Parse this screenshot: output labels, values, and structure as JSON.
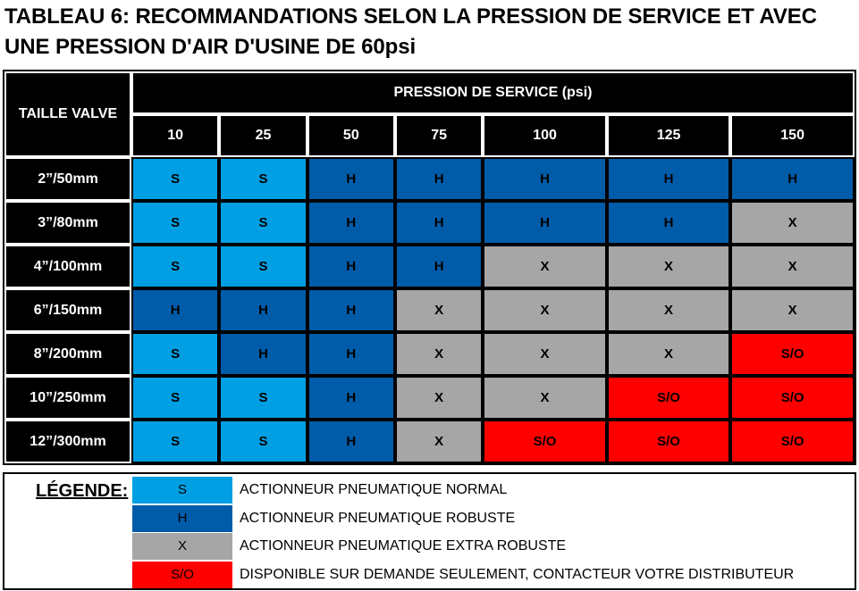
{
  "title": "TABLEAU 6: RECOMMANDATIONS SELON LA PRESSION DE SERVICE ET AVEC UNE PRESSION D'AIR D'USINE DE 60psi",
  "table": {
    "row_header": "TAILLE VALVE",
    "group_header": "PRESSION DE SERVICE (psi)",
    "columns": [
      "10",
      "25",
      "50",
      "75",
      "100",
      "125",
      "150"
    ],
    "rows": [
      {
        "size": "2”/50mm",
        "cells": [
          "S",
          "S",
          "H",
          "H",
          "H",
          "H",
          "H"
        ]
      },
      {
        "size": "3”/80mm",
        "cells": [
          "S",
          "S",
          "H",
          "H",
          "H",
          "H",
          "X"
        ]
      },
      {
        "size": "4”/100mm",
        "cells": [
          "S",
          "S",
          "H",
          "H",
          "X",
          "X",
          "X"
        ]
      },
      {
        "size": "6”/150mm",
        "cells": [
          "H",
          "H",
          "H",
          "X",
          "X",
          "X",
          "X"
        ]
      },
      {
        "size": "8”/200mm",
        "cells": [
          "S",
          "H",
          "H",
          "X",
          "X",
          "X",
          "S/O"
        ]
      },
      {
        "size": "10”/250mm",
        "cells": [
          "S",
          "S",
          "H",
          "X",
          "X",
          "S/O",
          "S/O"
        ]
      },
      {
        "size": "12”/300mm",
        "cells": [
          "S",
          "S",
          "H",
          "X",
          "S/O",
          "S/O",
          "S/O"
        ]
      }
    ]
  },
  "colors": {
    "S": "#009fe3",
    "H": "#005ca9",
    "X": "#a6a6a6",
    "S/O": "#ff0000"
  },
  "legend": {
    "title": "LÉGENDE:",
    "items": [
      {
        "code": "S",
        "text": "ACTIONNEUR PNEUMATIQUE NORMAL"
      },
      {
        "code": "H",
        "text": "ACTIONNEUR PNEUMATIQUE ROBUSTE"
      },
      {
        "code": "X",
        "text": "ACTIONNEUR PNEUMATIQUE EXTRA ROBUSTE"
      },
      {
        "code": "S/O",
        "text": "DISPONIBLE SUR DEMANDE SEULEMENT, CONTACTEUR VOTRE DISTRIBUTEUR"
      }
    ]
  }
}
